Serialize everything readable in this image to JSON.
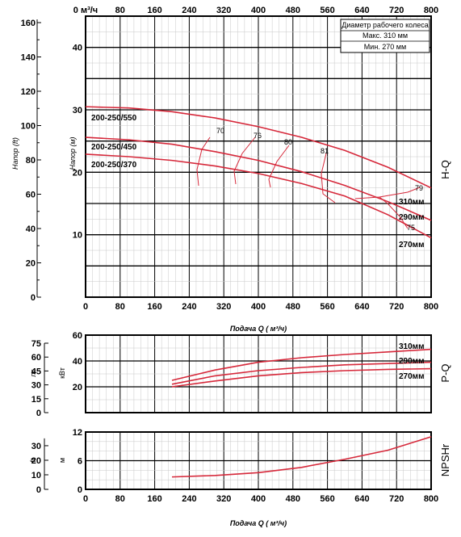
{
  "chart_data": [
    {
      "type": "line",
      "name": "H-Q",
      "side_label": "H-Q",
      "x_top_ticks": [
        "0 м³/ч",
        "80",
        "160",
        "240",
        "320",
        "400",
        "480",
        "560",
        "640",
        "720",
        "800"
      ],
      "xlim": [
        0,
        800
      ],
      "x_bottom_ticks": [
        "0",
        "80",
        "160",
        "240",
        "320",
        "400",
        "480",
        "560",
        "640",
        "720",
        "800"
      ],
      "xlabel": "Подача Q ( м³/ч)",
      "ylabel_outer": "Напор (ft)",
      "ylabel_inner": "Напор (м)",
      "ylim_m": [
        0,
        45
      ],
      "y_ft_ticks": [
        "0",
        "20",
        "40",
        "60",
        "80",
        "100",
        "120",
        "140",
        "160"
      ],
      "y_m_ticks": [
        "10",
        "20",
        "30",
        "40"
      ],
      "legend_box": {
        "title": "Диаметр рабочего колеса",
        "max": "Макс. 310 мм",
        "min": "Мин. 270 мм"
      },
      "series": [
        {
          "name": "200-250/550",
          "diameter": "310мм",
          "x": [
            0,
            100,
            200,
            300,
            400,
            500,
            600,
            700,
            800
          ],
          "y": [
            30.5,
            30.3,
            29.7,
            28.7,
            27.3,
            25.6,
            23.5,
            20.8,
            17.5
          ]
        },
        {
          "name": "200-250/450",
          "diameter": "290мм",
          "x": [
            0,
            100,
            200,
            300,
            400,
            500,
            600,
            700,
            800
          ],
          "y": [
            25.6,
            25.2,
            24.5,
            23.3,
            21.9,
            20.1,
            17.9,
            15.3,
            12.3
          ]
        },
        {
          "name": "200-250/370",
          "diameter": "270мм",
          "x": [
            0,
            100,
            200,
            300,
            400,
            500,
            600,
            700,
            800
          ],
          "y": [
            22.9,
            22.5,
            21.9,
            21.0,
            19.8,
            18.2,
            16.2,
            13.2,
            9.5
          ]
        }
      ],
      "efficiency_labels": [
        "70",
        "76",
        "80",
        "81",
        "79",
        "75"
      ]
    },
    {
      "type": "line",
      "name": "P-Q",
      "side_label": "P-Q",
      "ylabel_kw": "кВт",
      "ylabel_hp": "лс",
      "ylim_kw": [
        0,
        60
      ],
      "y_kw_ticks": [
        "20",
        "40",
        "60"
      ],
      "y_hp_ticks": [
        "0",
        "15",
        "30",
        "45",
        "60",
        "75"
      ],
      "series": [
        {
          "name": "310мм",
          "x": [
            200,
            300,
            400,
            500,
            600,
            700,
            800
          ],
          "y": [
            25,
            33,
            39,
            42.5,
            45,
            47,
            49
          ]
        },
        {
          "name": "290мм",
          "x": [
            200,
            300,
            400,
            500,
            600,
            700,
            800
          ],
          "y": [
            22,
            28.5,
            32.5,
            35,
            37,
            38,
            39
          ]
        },
        {
          "name": "270мм",
          "x": [
            200,
            300,
            400,
            500,
            600,
            700,
            800
          ],
          "y": [
            20,
            24.5,
            28.5,
            31,
            32.5,
            33.5,
            34
          ]
        }
      ]
    },
    {
      "type": "line",
      "name": "NPSHr",
      "side_label": "NPSHr",
      "ylabel_m": "м",
      "ylabel_ft": "ft",
      "ylim_m": [
        0,
        12
      ],
      "y_m_ticks": [
        "0",
        "6",
        "12"
      ],
      "y_ft_ticks": [
        "0",
        "10",
        "20",
        "30"
      ],
      "x_ticks": [
        "0",
        "80",
        "160",
        "240",
        "320",
        "400",
        "480",
        "560",
        "640",
        "720",
        "800"
      ],
      "xlabel": "Подача Q ( м³/ч)",
      "series": [
        {
          "name": "NPSHr",
          "x": [
            200,
            300,
            400,
            500,
            600,
            700,
            800
          ],
          "y": [
            2.6,
            2.9,
            3.5,
            4.6,
            6.3,
            8.2,
            11
          ]
        }
      ]
    }
  ]
}
